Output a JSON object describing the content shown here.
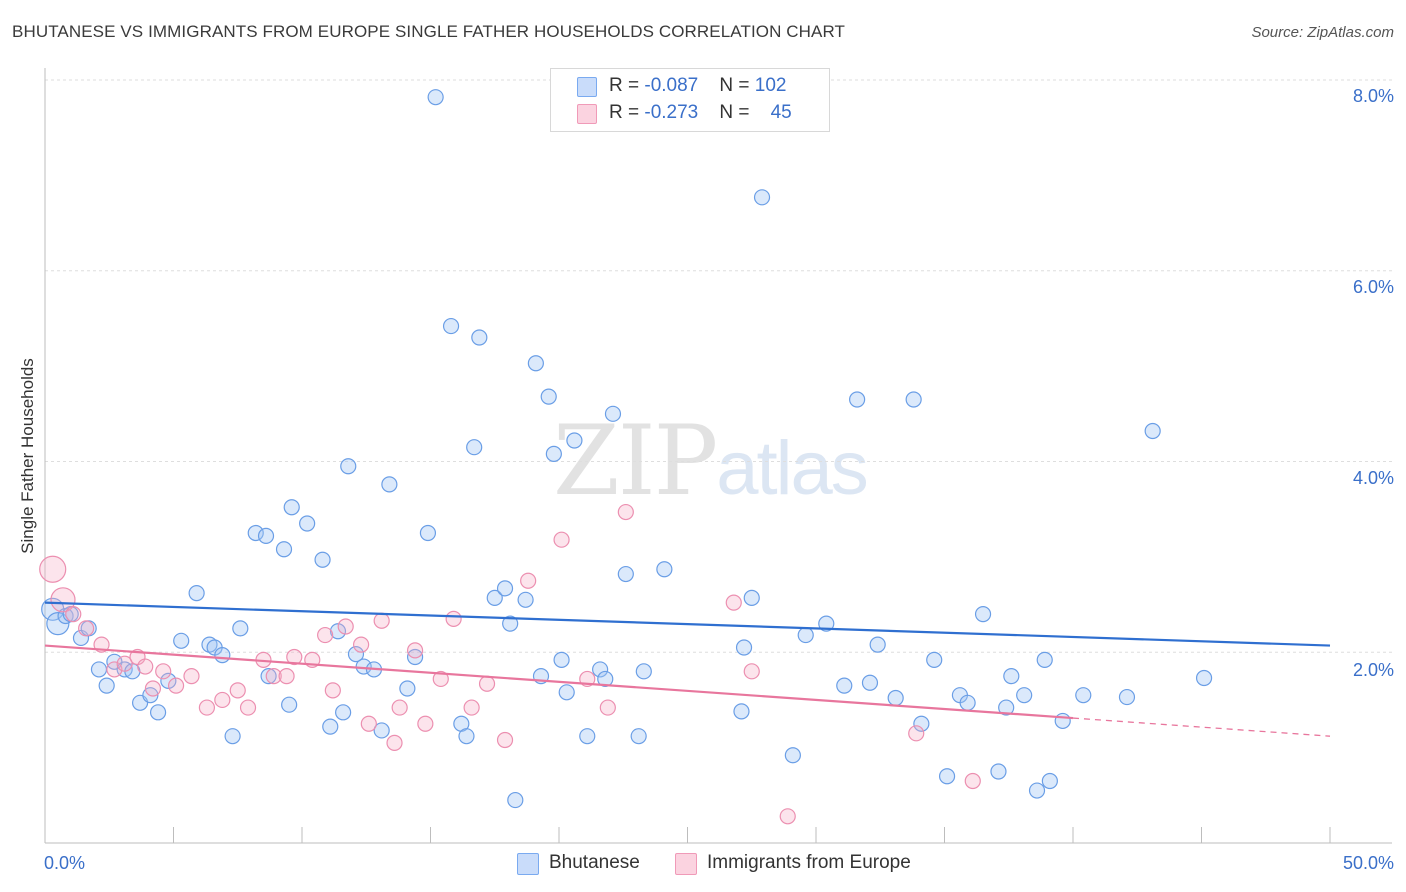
{
  "title": "BHUTANESE VS IMMIGRANTS FROM EUROPE SINGLE FATHER HOUSEHOLDS CORRELATION CHART",
  "source": "Source: ZipAtlas.com",
  "watermark": {
    "zip": "ZIP",
    "atlas": "atlas"
  },
  "legend": {
    "rows": [
      {
        "r_label": "R = ",
        "r_value": "-0.087",
        "n_label": "N = ",
        "n_value": "102",
        "color": "#7aaaf0"
      },
      {
        "r_label": "R = ",
        "r_value": "-0.273",
        "n_label": "N = ",
        "n_value": "45",
        "color": "#f09ab8"
      }
    ]
  },
  "bottom_legend": [
    {
      "label": "Bhutanese",
      "color": "#7aaaf0"
    },
    {
      "label": "Immigrants from Europe",
      "color": "#f09ab8"
    }
  ],
  "chart_data": {
    "type": "scatter",
    "title": "BHUTANESE VS IMMIGRANTS FROM EUROPE SINGLE FATHER HOUSEHOLDS CORRELATION CHART",
    "xlabel": "",
    "ylabel": "Single Father Households",
    "xlim": [
      0,
      50
    ],
    "ylim": [
      0,
      8.3
    ],
    "x_tick_labels": [
      "0.0%",
      "50.0%"
    ],
    "y_ticks": [
      2,
      4,
      6,
      8
    ],
    "y_tick_labels": [
      "2.0%",
      "4.0%",
      "6.0%",
      "8.0%"
    ],
    "grid": "horizontal dashed",
    "legend_position": "top-center",
    "series": [
      {
        "name": "Bhutanese",
        "color": "#7aaaf0",
        "trend": {
          "x": [
            0,
            50
          ],
          "y": [
            2.52,
            2.07
          ],
          "color": "#2f6fd0"
        },
        "points": [
          [
            0.3,
            2.45
          ],
          [
            0.5,
            2.3
          ],
          [
            0.8,
            2.38
          ],
          [
            1.0,
            2.4
          ],
          [
            1.4,
            2.15
          ],
          [
            1.7,
            2.25
          ],
          [
            2.1,
            1.82
          ],
          [
            2.4,
            1.65
          ],
          [
            2.7,
            1.9
          ],
          [
            3.1,
            1.82
          ],
          [
            3.4,
            1.8
          ],
          [
            3.7,
            1.47
          ],
          [
            4.1,
            1.55
          ],
          [
            4.4,
            1.37
          ],
          [
            4.8,
            1.7
          ],
          [
            5.3,
            2.12
          ],
          [
            5.9,
            2.62
          ],
          [
            6.4,
            2.08
          ],
          [
            6.6,
            2.05
          ],
          [
            6.9,
            1.97
          ],
          [
            7.3,
            1.12
          ],
          [
            7.6,
            2.25
          ],
          [
            8.2,
            3.25
          ],
          [
            8.6,
            3.22
          ],
          [
            8.7,
            1.75
          ],
          [
            9.3,
            3.08
          ],
          [
            9.5,
            1.45
          ],
          [
            9.6,
            3.52
          ],
          [
            10.2,
            3.35
          ],
          [
            10.8,
            2.97
          ],
          [
            11.1,
            1.22
          ],
          [
            11.4,
            2.22
          ],
          [
            11.6,
            1.37
          ],
          [
            11.8,
            3.95
          ],
          [
            12.1,
            1.98
          ],
          [
            12.4,
            1.85
          ],
          [
            12.8,
            1.82
          ],
          [
            13.1,
            1.18
          ],
          [
            13.4,
            3.76
          ],
          [
            14.1,
            1.62
          ],
          [
            14.4,
            1.95
          ],
          [
            14.9,
            3.25
          ],
          [
            15.2,
            7.82
          ],
          [
            15.8,
            5.42
          ],
          [
            16.2,
            1.25
          ],
          [
            16.4,
            1.12
          ],
          [
            16.7,
            4.15
          ],
          [
            16.9,
            5.3
          ],
          [
            17.5,
            2.57
          ],
          [
            17.9,
            2.67
          ],
          [
            18.1,
            2.3
          ],
          [
            18.3,
            0.45
          ],
          [
            18.7,
            2.55
          ],
          [
            19.1,
            5.03
          ],
          [
            19.3,
            1.75
          ],
          [
            19.6,
            4.68
          ],
          [
            19.8,
            4.08
          ],
          [
            20.1,
            1.92
          ],
          [
            20.3,
            1.58
          ],
          [
            20.6,
            4.22
          ],
          [
            21.1,
            1.12
          ],
          [
            21.6,
            1.82
          ],
          [
            21.8,
            1.72
          ],
          [
            22.1,
            4.5
          ],
          [
            22.6,
            2.82
          ],
          [
            23.1,
            1.12
          ],
          [
            23.3,
            1.8
          ],
          [
            24.1,
            2.87
          ],
          [
            27.1,
            1.38
          ],
          [
            27.2,
            2.05
          ],
          [
            27.5,
            2.57
          ],
          [
            27.9,
            6.77
          ],
          [
            29.1,
            0.92
          ],
          [
            29.6,
            2.18
          ],
          [
            30.4,
            2.3
          ],
          [
            31.1,
            1.65
          ],
          [
            31.6,
            4.65
          ],
          [
            32.1,
            1.68
          ],
          [
            32.4,
            2.08
          ],
          [
            33.1,
            1.52
          ],
          [
            33.8,
            4.65
          ],
          [
            34.1,
            1.25
          ],
          [
            34.6,
            1.92
          ],
          [
            35.1,
            0.7
          ],
          [
            35.6,
            1.55
          ],
          [
            35.9,
            1.47
          ],
          [
            36.5,
            2.4
          ],
          [
            37.1,
            0.75
          ],
          [
            37.4,
            1.42
          ],
          [
            37.6,
            1.75
          ],
          [
            38.1,
            1.55
          ],
          [
            38.6,
            0.55
          ],
          [
            38.9,
            1.92
          ],
          [
            39.1,
            0.65
          ],
          [
            39.6,
            1.28
          ],
          [
            40.4,
            1.55
          ],
          [
            42.1,
            1.53
          ],
          [
            43.1,
            4.32
          ],
          [
            45.1,
            1.73
          ]
        ]
      },
      {
        "name": "Immigrants from Europe",
        "color": "#f09ab8",
        "trend": {
          "x": [
            0,
            40
          ],
          "y": [
            2.07,
            1.31
          ],
          "color": "#e8769d",
          "dashed_to": [
            50,
            1.12
          ]
        },
        "points": [
          [
            0.3,
            2.87
          ],
          [
            0.7,
            2.55
          ],
          [
            1.1,
            2.4
          ],
          [
            1.6,
            2.25
          ],
          [
            2.2,
            2.08
          ],
          [
            2.7,
            1.82
          ],
          [
            3.1,
            1.88
          ],
          [
            3.6,
            1.95
          ],
          [
            3.9,
            1.85
          ],
          [
            4.2,
            1.62
          ],
          [
            4.6,
            1.8
          ],
          [
            5.1,
            1.65
          ],
          [
            5.7,
            1.75
          ],
          [
            6.3,
            1.42
          ],
          [
            6.9,
            1.5
          ],
          [
            7.5,
            1.6
          ],
          [
            7.9,
            1.42
          ],
          [
            8.5,
            1.92
          ],
          [
            8.9,
            1.75
          ],
          [
            9.4,
            1.75
          ],
          [
            9.7,
            1.95
          ],
          [
            10.4,
            1.92
          ],
          [
            10.9,
            2.18
          ],
          [
            11.2,
            1.6
          ],
          [
            11.7,
            2.27
          ],
          [
            12.3,
            2.08
          ],
          [
            12.6,
            1.25
          ],
          [
            13.1,
            2.33
          ],
          [
            13.6,
            1.05
          ],
          [
            13.8,
            1.42
          ],
          [
            14.4,
            2.02
          ],
          [
            14.8,
            1.25
          ],
          [
            15.4,
            1.72
          ],
          [
            15.9,
            2.35
          ],
          [
            16.6,
            1.42
          ],
          [
            17.2,
            1.67
          ],
          [
            17.9,
            1.08
          ],
          [
            18.8,
            2.75
          ],
          [
            20.1,
            3.18
          ],
          [
            21.1,
            1.72
          ],
          [
            21.9,
            1.42
          ],
          [
            22.6,
            3.47
          ],
          [
            26.8,
            2.52
          ],
          [
            27.5,
            1.8
          ],
          [
            28.9,
            0.28
          ],
          [
            33.9,
            1.15
          ],
          [
            36.1,
            0.65
          ]
        ]
      }
    ]
  }
}
